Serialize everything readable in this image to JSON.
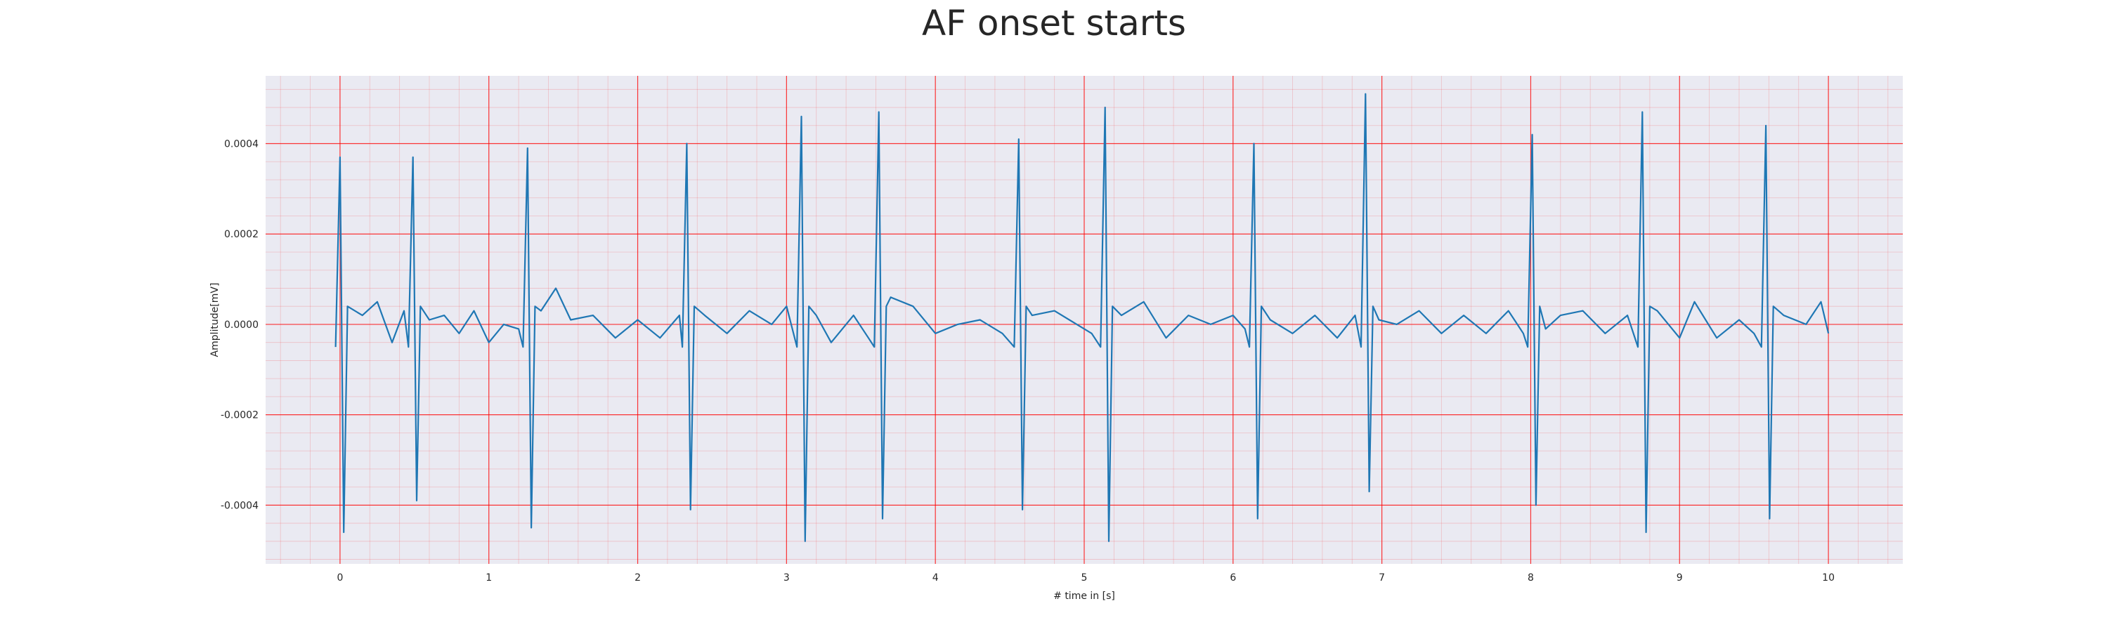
{
  "chart_data": {
    "type": "line",
    "title": "AF onset starts",
    "xlabel": "# time in [s]",
    "ylabel": "Amplitude[mV]",
    "xlim": [
      -0.5,
      10.5
    ],
    "ylim": [
      -0.00053,
      0.00055
    ],
    "x_ticks": [
      0,
      1,
      2,
      3,
      4,
      5,
      6,
      7,
      8,
      9,
      10
    ],
    "y_ticks": [
      -0.0004,
      -0.0002,
      0.0,
      0.0002,
      0.0004
    ],
    "y_tick_labels": [
      "-0.0004",
      "-0.0002",
      "0.0000",
      "0.0002",
      "0.0004"
    ],
    "grid": true,
    "minor_grid": true,
    "background": "#eaeaf2",
    "grid_color": "#ff0000",
    "series": [
      {
        "color": "#1f77b4",
        "beats": [
          {
            "t": 0.0,
            "peak": 0.00037,
            "trough": -0.00046
          },
          {
            "t": 0.49,
            "peak": 0.00037,
            "trough": -0.00039
          },
          {
            "t": 1.26,
            "peak": 0.00039,
            "trough": -0.00045
          },
          {
            "t": 2.33,
            "peak": 0.0004,
            "trough": -0.00041
          },
          {
            "t": 3.1,
            "peak": 0.00046,
            "trough": -0.00048
          },
          {
            "t": 3.62,
            "peak": 0.00047,
            "trough": -0.00043
          },
          {
            "t": 4.56,
            "peak": 0.00041,
            "trough": -0.00041
          },
          {
            "t": 5.14,
            "peak": 0.00048,
            "trough": -0.00048
          },
          {
            "t": 6.14,
            "peak": 0.0004,
            "trough": -0.00043
          },
          {
            "t": 6.89,
            "peak": 0.00051,
            "trough": -0.00037
          },
          {
            "t": 8.01,
            "peak": 0.00042,
            "trough": -0.0004
          },
          {
            "t": 8.75,
            "peak": 0.00047,
            "trough": -0.00046
          },
          {
            "t": 9.58,
            "peak": 0.00044,
            "trough": -0.00043
          }
        ],
        "baseline": [
          [
            0.05,
            3e-05
          ],
          [
            0.15,
            2e-05
          ],
          [
            0.25,
            5e-05
          ],
          [
            0.35,
            -4e-05
          ],
          [
            0.43,
            3e-05
          ],
          [
            0.6,
            1e-05
          ],
          [
            0.7,
            2e-05
          ],
          [
            0.8,
            -2e-05
          ],
          [
            0.9,
            3e-05
          ],
          [
            1.0,
            -4e-05
          ],
          [
            1.1,
            0.0
          ],
          [
            1.2,
            -1e-05
          ],
          [
            1.35,
            3e-05
          ],
          [
            1.45,
            8e-05
          ],
          [
            1.55,
            1e-05
          ],
          [
            1.7,
            2e-05
          ],
          [
            1.85,
            -3e-05
          ],
          [
            2.0,
            1e-05
          ],
          [
            2.15,
            -3e-05
          ],
          [
            2.28,
            2e-05
          ],
          [
            2.45,
            2e-05
          ],
          [
            2.6,
            -2e-05
          ],
          [
            2.75,
            3e-05
          ],
          [
            2.9,
            0.0
          ],
          [
            3.0,
            4e-05
          ],
          [
            3.2,
            2e-05
          ],
          [
            3.3,
            -4e-05
          ],
          [
            3.45,
            2e-05
          ],
          [
            3.55,
            -3e-05
          ],
          [
            3.7,
            6e-05
          ],
          [
            3.85,
            4e-05
          ],
          [
            4.0,
            -2e-05
          ],
          [
            4.15,
            0.0
          ],
          [
            4.3,
            1e-05
          ],
          [
            4.45,
            -2e-05
          ],
          [
            4.65,
            2e-05
          ],
          [
            4.8,
            3e-05
          ],
          [
            4.95,
            0.0
          ],
          [
            5.05,
            -2e-05
          ],
          [
            5.25,
            2e-05
          ],
          [
            5.4,
            5e-05
          ],
          [
            5.55,
            -3e-05
          ],
          [
            5.7,
            2e-05
          ],
          [
            5.85,
            0.0
          ],
          [
            6.0,
            2e-05
          ],
          [
            6.08,
            -1e-05
          ],
          [
            6.25,
            1e-05
          ],
          [
            6.4,
            -2e-05
          ],
          [
            6.55,
            2e-05
          ],
          [
            6.7,
            -3e-05
          ],
          [
            6.82,
            2e-05
          ],
          [
            6.98,
            1e-05
          ],
          [
            7.1,
            0.0
          ],
          [
            7.25,
            3e-05
          ],
          [
            7.4,
            -2e-05
          ],
          [
            7.55,
            2e-05
          ],
          [
            7.7,
            -2e-05
          ],
          [
            7.85,
            3e-05
          ],
          [
            7.95,
            -2e-05
          ],
          [
            8.1,
            -1e-05
          ],
          [
            8.2,
            2e-05
          ],
          [
            8.35,
            3e-05
          ],
          [
            8.5,
            -2e-05
          ],
          [
            8.65,
            2e-05
          ],
          [
            8.85,
            3e-05
          ],
          [
            9.0,
            -3e-05
          ],
          [
            9.1,
            5e-05
          ],
          [
            9.25,
            -3e-05
          ],
          [
            9.4,
            1e-05
          ],
          [
            9.5,
            -2e-05
          ],
          [
            9.7,
            2e-05
          ],
          [
            9.85,
            0.0
          ],
          [
            9.95,
            5e-05
          ],
          [
            10.0,
            -2e-05
          ]
        ]
      }
    ]
  }
}
